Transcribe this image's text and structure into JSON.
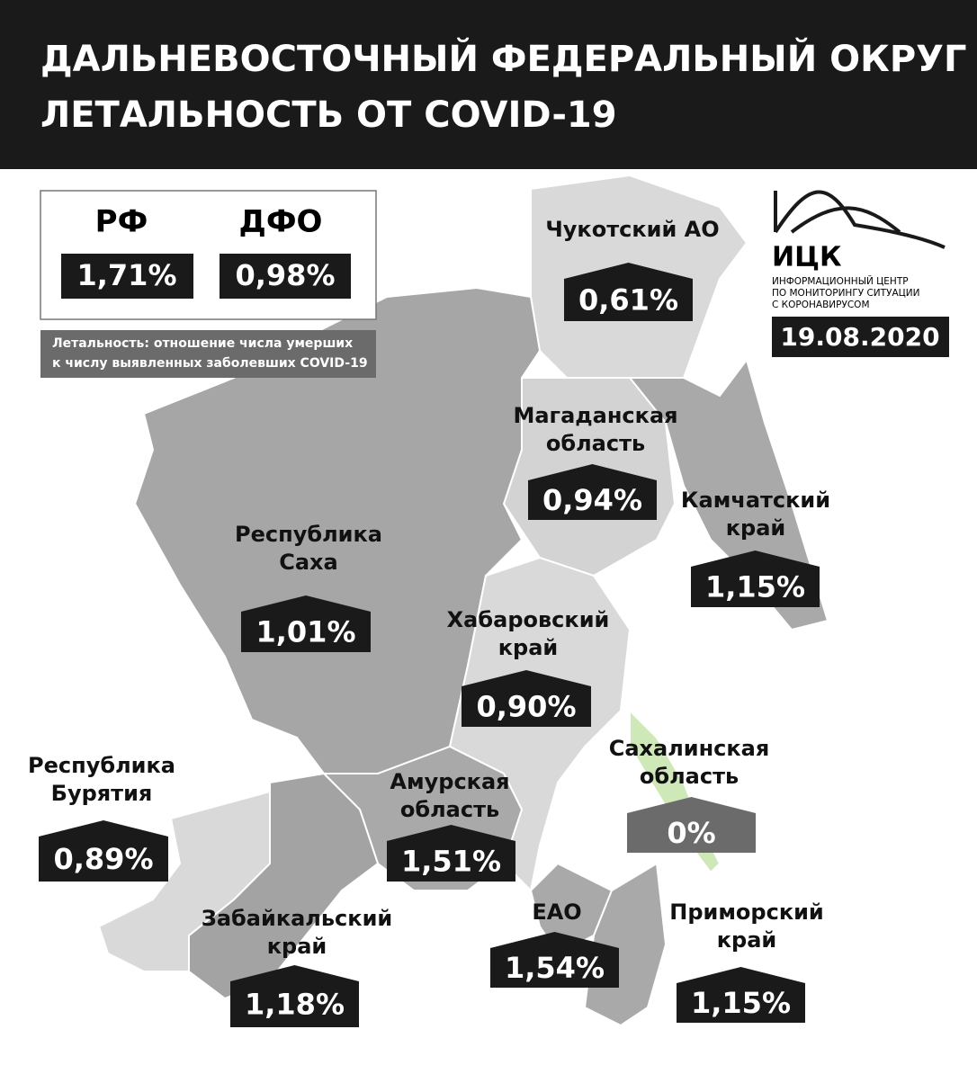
{
  "header": {
    "title_lines": [
      "ДАЛЬНЕВОСТОЧНЫЙ ФЕДЕРАЛЬНЫЙ ОКРУГ",
      "ЛЕТАЛЬНОСТЬ ОТ COVID-19"
    ]
  },
  "summary": {
    "rf": {
      "label": "РФ",
      "value": "1,71%"
    },
    "dfo": {
      "label": "ДФО",
      "value": "0,98%"
    },
    "note_lines": [
      "Летальность: отношение числа умерших",
      "к числу выявленных заболевших COVID-19"
    ]
  },
  "logo": {
    "name": "ИЦК",
    "lines": [
      "ИНФОРМАЦИОННЫЙ ЦЕНТР",
      "ПО МОНИТОРИНГУ СИТУАЦИИ",
      "С КОРОНАВИРУСОМ"
    ]
  },
  "date": "19.08.2020",
  "regions": [
    {
      "name_lines": [
        "Чукотский АО"
      ],
      "value": "0,61%"
    },
    {
      "name_lines": [
        "Магаданская",
        "область"
      ],
      "value": "0,94%"
    },
    {
      "name_lines": [
        "Камчатский",
        "край"
      ],
      "value": "1,15%"
    },
    {
      "name_lines": [
        "Республика",
        "Саха"
      ],
      "value": "1,01%"
    },
    {
      "name_lines": [
        "Хабаровский",
        "край"
      ],
      "value": "0,90%"
    },
    {
      "name_lines": [
        "Сахалинская",
        "область"
      ],
      "value": "0%"
    },
    {
      "name_lines": [
        "Республика",
        "Бурятия"
      ],
      "value": "0,89%"
    },
    {
      "name_lines": [
        "Амурская",
        "область"
      ],
      "value": "1,51%"
    },
    {
      "name_lines": [
        "ЕАО"
      ],
      "value": "1,54%"
    },
    {
      "name_lines": [
        "Приморский",
        "край"
      ],
      "value": "1,15%"
    },
    {
      "name_lines": [
        "Забайкальский",
        "край"
      ],
      "value": "1,18%"
    }
  ]
}
